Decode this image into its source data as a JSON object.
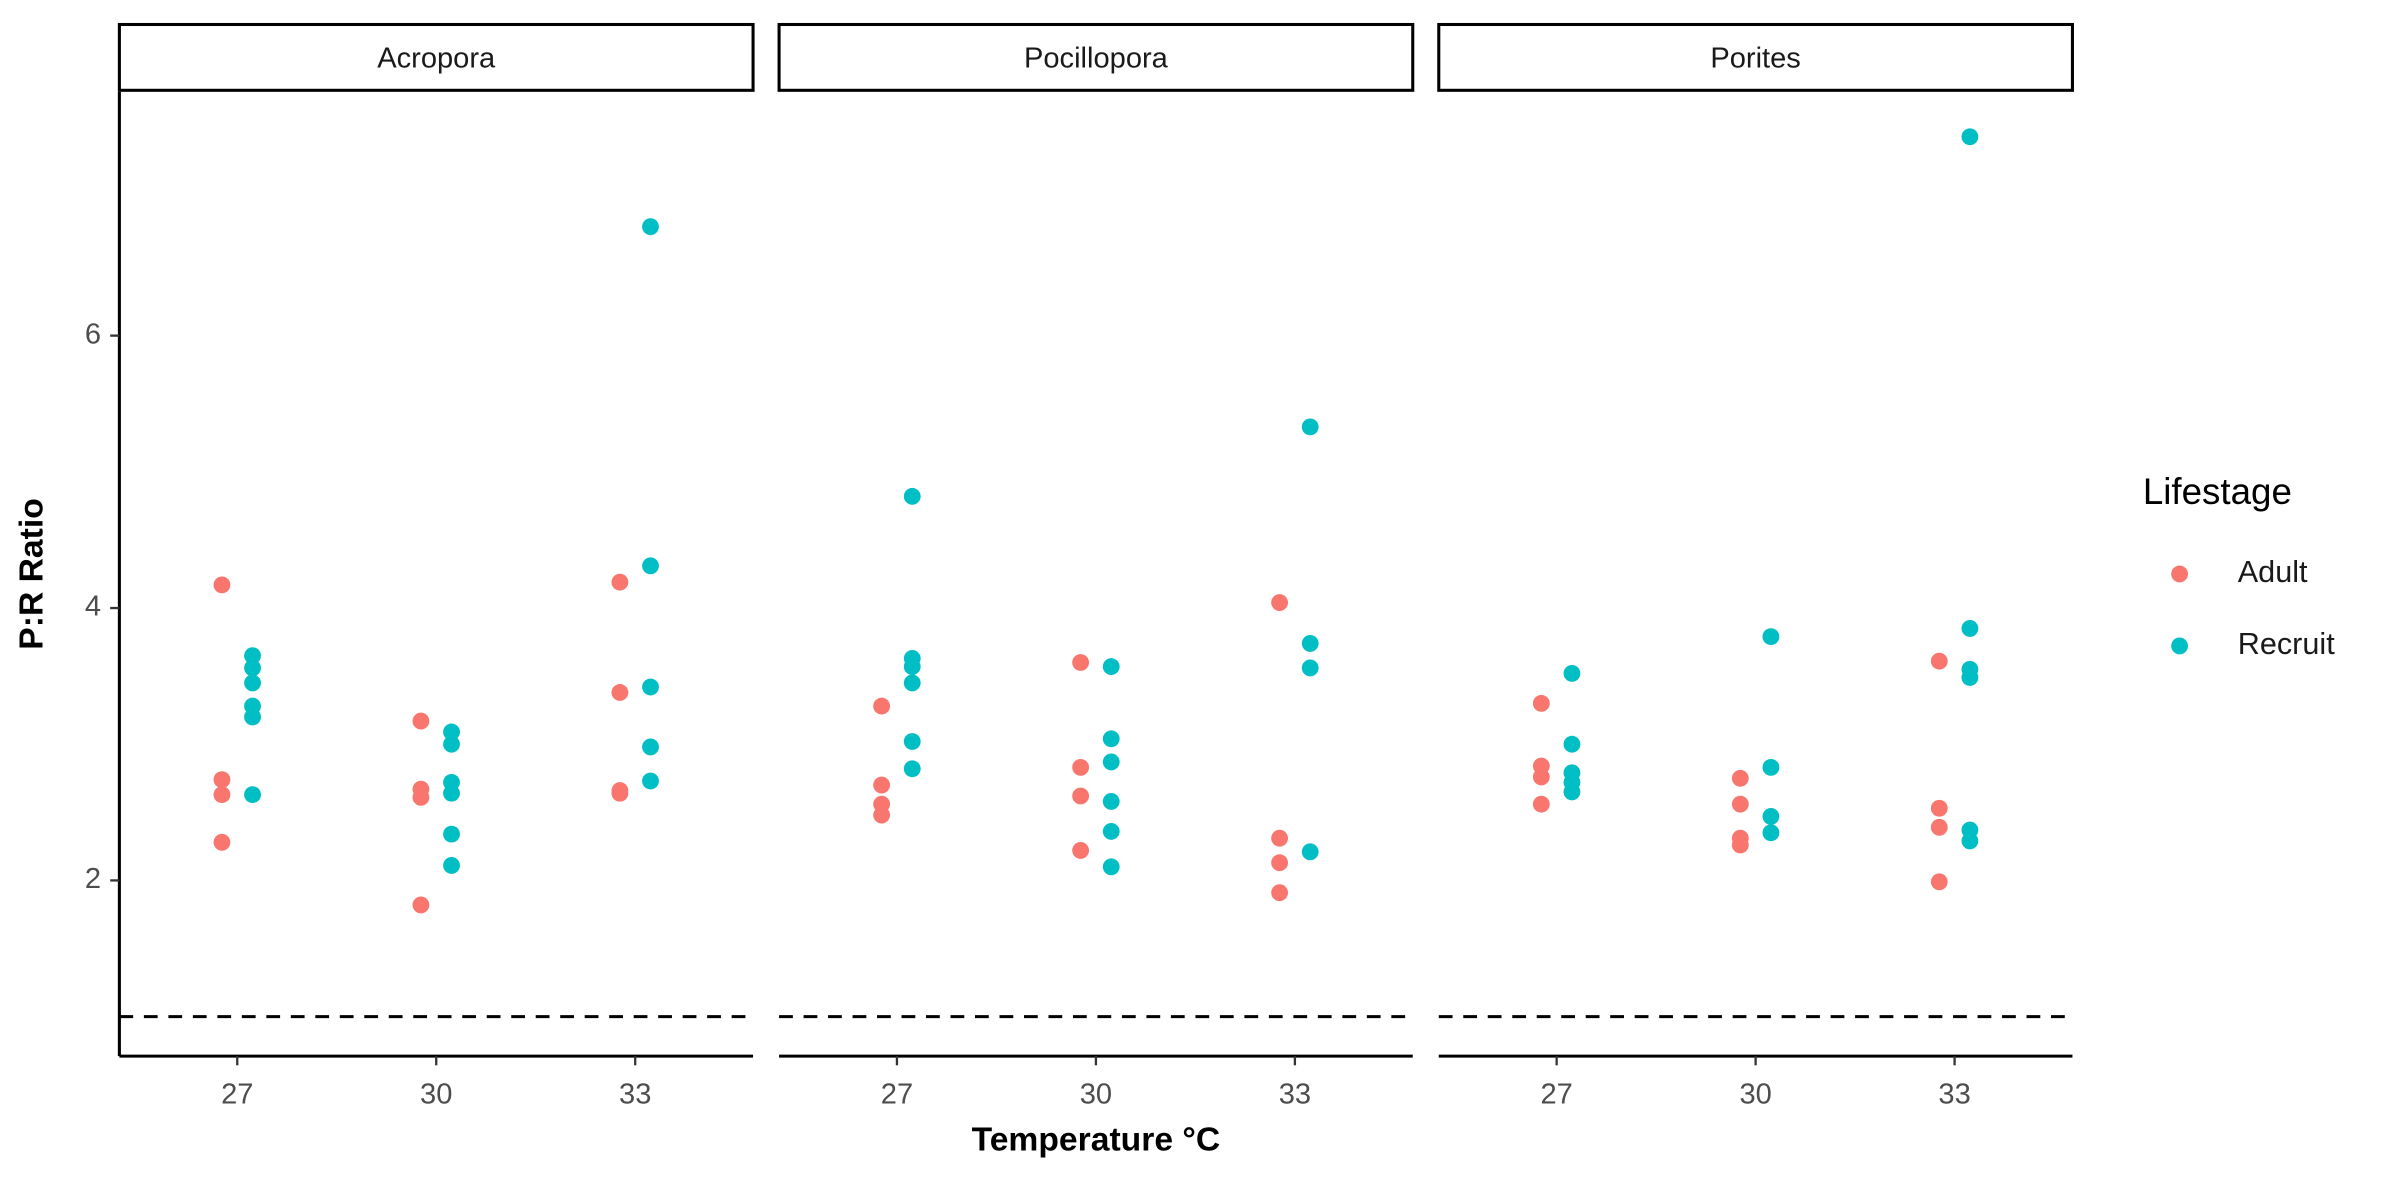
{
  "chart_data": {
    "type": "scatter",
    "x_label": "Temperature °C",
    "y_label": "P:R Ratio",
    "legend_title": "Lifestage",
    "legend": "right",
    "categories": [
      27,
      30,
      33
    ],
    "ylim": [
      0.71,
      7.79
    ],
    "yticks": [
      2,
      4,
      6
    ],
    "hline": 1,
    "panels": [
      {
        "title": "Acropora",
        "series": [
          {
            "name": "Adult",
            "color": "#F8766D",
            "x": [
              27,
              27,
              27,
              27,
              30,
              30,
              30,
              30,
              33,
              33,
              33,
              33
            ],
            "values": [
              4.17,
              2.74,
              2.63,
              2.28,
              3.17,
              2.67,
              2.61,
              1.82,
              4.19,
              3.38,
              2.66,
              2.64
            ]
          },
          {
            "name": "Recruit",
            "color": "#00BFC4",
            "x": [
              27,
              27,
              27,
              27,
              27,
              27,
              30,
              30,
              30,
              30,
              30,
              30,
              33,
              33,
              33,
              33,
              33
            ],
            "values": [
              3.65,
              3.56,
              3.45,
              3.28,
              3.2,
              2.63,
              3.09,
              3.0,
              2.72,
              2.64,
              2.34,
              2.11,
              6.8,
              4.31,
              3.42,
              2.98,
              2.73
            ]
          }
        ]
      },
      {
        "title": "Pocillopora",
        "series": [
          {
            "name": "Adult",
            "color": "#F8766D",
            "x": [
              27,
              27,
              27,
              27,
              30,
              30,
              30,
              30,
              33,
              33,
              33,
              33
            ],
            "values": [
              3.28,
              2.7,
              2.56,
              2.48,
              3.6,
              2.83,
              2.62,
              2.22,
              4.04,
              2.31,
              2.13,
              1.91
            ]
          },
          {
            "name": "Recruit",
            "color": "#00BFC4",
            "x": [
              27,
              27,
              27,
              27,
              27,
              27,
              30,
              30,
              30,
              30,
              30,
              30,
              33,
              33,
              33,
              33
            ],
            "values": [
              4.82,
              3.63,
              3.57,
              3.45,
              3.02,
              2.82,
              3.57,
              3.04,
              2.87,
              2.58,
              2.36,
              2.1,
              5.33,
              3.74,
              3.56,
              2.21
            ]
          }
        ]
      },
      {
        "title": "Porites",
        "series": [
          {
            "name": "Adult",
            "color": "#F8766D",
            "x": [
              27,
              27,
              27,
              27,
              30,
              30,
              30,
              30,
              33,
              33,
              33,
              33
            ],
            "values": [
              3.3,
              2.84,
              2.76,
              2.56,
              2.75,
              2.56,
              2.31,
              2.26,
              3.61,
              2.53,
              2.39,
              1.99
            ]
          },
          {
            "name": "Recruit",
            "color": "#00BFC4",
            "x": [
              27,
              27,
              27,
              27,
              27,
              30,
              30,
              30,
              30,
              33,
              33,
              33,
              33,
              33,
              33
            ],
            "values": [
              3.52,
              3.0,
              2.79,
              2.72,
              2.65,
              3.79,
              2.83,
              2.47,
              2.35,
              7.46,
              3.85,
              3.55,
              3.49,
              2.37,
              2.29
            ]
          }
        ]
      }
    ]
  }
}
